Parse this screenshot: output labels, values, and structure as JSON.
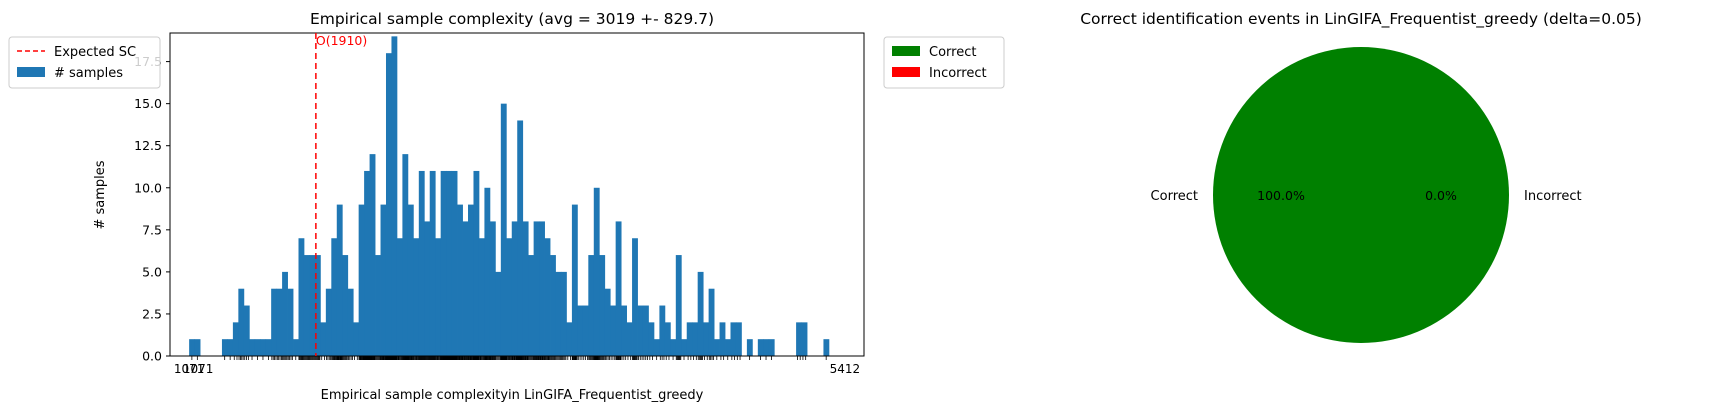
{
  "chart_data": [
    {
      "type": "bar",
      "title": "Empirical sample complexity (avg = 3019 +- 829.7)",
      "xlabel": "Empirical sample complexityin LinGIFA_Frequentist_greedy",
      "ylabel": "# samples",
      "x_range": [
        1071,
        5412
      ],
      "ylim": [
        0,
        19.2
      ],
      "yticks": [
        0.0,
        2.5,
        5.0,
        7.5,
        10.0,
        12.5,
        15.0,
        17.5
      ],
      "ytick_labels": [
        "0.0",
        "2.5",
        "5.0",
        "7.5",
        "10.0",
        "12.5",
        "15.0",
        "17.5"
      ],
      "xtick_labels_visible": [
        "1071",
        "1071",
        "5412"
      ],
      "bin_width": 36.2,
      "values": [
        1,
        1,
        0,
        0,
        0,
        0,
        1,
        1,
        2,
        4,
        3,
        1,
        1,
        1,
        1,
        4,
        4,
        5,
        4,
        1,
        7,
        6,
        6,
        6,
        2,
        4,
        7,
        9,
        6,
        4,
        2,
        9,
        11,
        12,
        6,
        9,
        18,
        19,
        7,
        12,
        9,
        7,
        11,
        8,
        11,
        7,
        11,
        11,
        11,
        9,
        8,
        9,
        11,
        7,
        10,
        8,
        5,
        15,
        7,
        8,
        14,
        8,
        6,
        8,
        8,
        7,
        6,
        5,
        5,
        2,
        9,
        3,
        3,
        6,
        10,
        6,
        4,
        3,
        8,
        3,
        2,
        7,
        3,
        3,
        2,
        1,
        3,
        2,
        1,
        6,
        1,
        2,
        2,
        5,
        2,
        4,
        1,
        2,
        1,
        2,
        2,
        0,
        1,
        0,
        1,
        1,
        1,
        0,
        0,
        0,
        0,
        2,
        2,
        0,
        0,
        0,
        1
      ],
      "expected_sc": {
        "x": 1910,
        "label": "O(1910)",
        "color": "#ff0000"
      },
      "legend": {
        "placement": "upper-left-outside",
        "entries": [
          {
            "label": "Expected SC",
            "style": "dashed-line",
            "color": "#ff0000"
          },
          {
            "label": "# samples",
            "style": "patch",
            "color": "#1f77b4"
          }
        ]
      },
      "bar_color": "#1f77b4",
      "grid": false
    },
    {
      "type": "pie",
      "title": "Correct identification events in LinGIFA_Frequentist_greedy (delta=0.05)",
      "slices": [
        {
          "label": "Correct",
          "value": 100.0,
          "pct_label": "100.0%",
          "color": "#008000"
        },
        {
          "label": "Incorrect",
          "value": 0.0,
          "pct_label": "0.0%",
          "color": "#ff0000"
        }
      ],
      "legend": {
        "placement": "upper-left-outside",
        "entries": [
          {
            "label": "Correct",
            "color": "#008000"
          },
          {
            "label": "Incorrect",
            "color": "#ff0000"
          }
        ]
      }
    }
  ]
}
